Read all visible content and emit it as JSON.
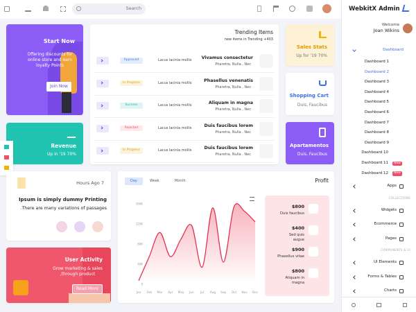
{
  "topbar": {
    "search": "Search"
  },
  "sidebar": {
    "brand": "WebkitX Admin",
    "welcome": "Welcome",
    "user": "Joan Wikins",
    "dashboard": "Dashboard",
    "dashboards": [
      {
        "label": "Dashboard 1"
      },
      {
        "label": "Dashboard 2"
      },
      {
        "label": "Dashboard 3"
      },
      {
        "label": "Dashboard 4"
      },
      {
        "label": "Dashboard 5"
      },
      {
        "label": "Dashboard 6"
      },
      {
        "label": "Dashboard 7"
      },
      {
        "label": "Dashboard 8"
      },
      {
        "label": "Dashboard 9"
      },
      {
        "label": "Dashboard 10"
      },
      {
        "label": "Dashboard 11",
        "badge": "New"
      },
      {
        "label": "Dashboard 12",
        "badge": "New"
      }
    ],
    "apps": "Apps",
    "sections": [
      {
        "heading": "COLLECTIONS",
        "items": [
          "Widgets",
          "Ecommerce",
          "Pages"
        ]
      },
      {
        "heading": "COMPONENTS & UI",
        "items": [
          "UI Elements",
          "Forms & Tables",
          "Charts"
        ]
      }
    ]
  },
  "start": {
    "title": "Start Now",
    "text": "Offering discounts for online store and earn loyalty Points",
    "button": "Join Now"
  },
  "revenue": {
    "title": "Revenue",
    "text": "Up in '19 70%"
  },
  "trending": {
    "title": "Trending Items",
    "subtitle": "new items in Trending +403",
    "rows": [
      {
        "status": "Approved",
        "color": "#3d7bea",
        "note": "Lacus lacinia mollis",
        "name": "Vivamus consectetur",
        "sub": "Pharetra, Nulla , Nec"
      },
      {
        "status": "In Progress",
        "color": "#e0a400",
        "note": "Lacus lacinia mollis",
        "name": "Phasellus venenatis",
        "sub": "Pharetra, Nulla , Nec"
      },
      {
        "status": "Success",
        "color": "#16b7a8",
        "note": "Lacus lacinia mollis",
        "name": "Aliquam in magna",
        "sub": "Pharetra, Nulla , Nec"
      },
      {
        "status": "Rejected",
        "color": "#ef4f6b",
        "note": "Lacus lacinia mollis",
        "name": "Duis faucibus lorem",
        "sub": "Pharetra, Nulla , Nec"
      },
      {
        "status": "In Progress",
        "color": "#e0a400",
        "note": "Lacus lacinia mollis",
        "name": "Duis faucibus lorem",
        "sub": "Pharetra, Nulla , Nec"
      }
    ]
  },
  "sales": {
    "title": "Sales Stats",
    "text": "Up for '19 70%"
  },
  "cart": {
    "title": "Shopping Cart",
    "text": "Duis, Faucibus"
  },
  "apartments": {
    "title": "Apartamentos",
    "text": "Duis, Faucibus"
  },
  "hours": {
    "time": "Hours Ago 7",
    "title": "Ipsum is simply dummy Printing",
    "text": ".There are many variations of passages"
  },
  "activity": {
    "title": "User Activity",
    "text": "Grow marketing & sales ,through product",
    "button": "Read More"
  },
  "profit": {
    "title": "Profit",
    "tabs": [
      "Day",
      "Week",
      "Month"
    ],
    "items": [
      {
        "amount": "$800",
        "label": "Duis faucibus"
      },
      {
        "amount": "$400",
        "label": "Sed quis augue"
      },
      {
        "amount": "$900",
        "label": "Phasellus vitae"
      },
      {
        "amount": "$800",
        "label": "Aliquam in magna"
      }
    ]
  },
  "chart_data": {
    "type": "line",
    "categories": [
      "Jan",
      "Feb",
      "Mar",
      "Apr",
      "May",
      "Jun",
      "Jul",
      "Aug",
      "Sep",
      "Oct",
      "Nov",
      "Dec"
    ],
    "series": [
      {
        "name": "Profit",
        "color": "#e0344f",
        "values": [
          7000,
          55000,
          103000,
          55000,
          90000,
          117000,
          34000,
          152000,
          44000,
          154000,
          145000,
          124000
        ]
      }
    ],
    "ylim": [
      0,
      160000
    ],
    "yticks": [
      0,
      {
        "value": 40000,
        "label": "40K"
      },
      {
        "value": 80000,
        "label": "80K"
      },
      {
        "value": 120000,
        "label": "120K"
      },
      {
        "value": 160000,
        "label": "160K"
      }
    ]
  }
}
